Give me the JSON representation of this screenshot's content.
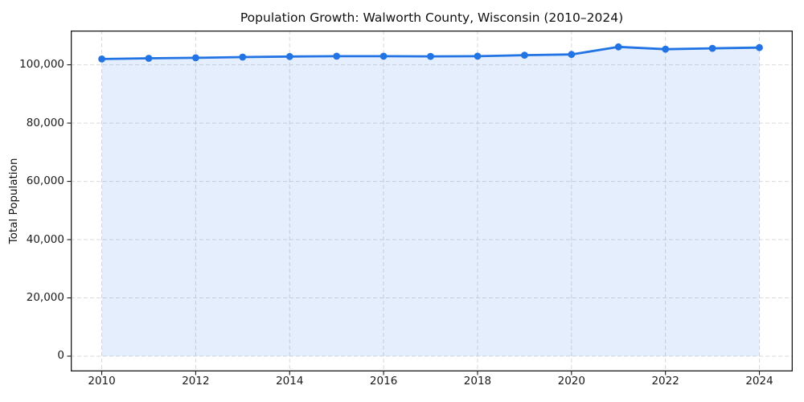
{
  "chart": {
    "title": "Population Growth: Walworth County, Wisconsin (2010–2024)",
    "ylabel": "Total Population"
  },
  "chart_data": {
    "type": "line",
    "title": "Population Growth: Walworth County, Wisconsin (2010–2024)",
    "xlabel": "",
    "ylabel": "Total Population",
    "x": [
      2010,
      2011,
      2012,
      2013,
      2014,
      2015,
      2016,
      2017,
      2018,
      2019,
      2020,
      2021,
      2022,
      2023,
      2024
    ],
    "y": [
      102000,
      102250,
      102400,
      102650,
      102850,
      102950,
      102950,
      102900,
      102950,
      103300,
      103550,
      106150,
      105350,
      105650,
      105900
    ],
    "series_name": "Total Population",
    "line_color": "#2273e3",
    "fill_color": "rgba(34,115,227,0.12)",
    "marker": "circle",
    "grid": true,
    "grid_style": "dashed",
    "legend": "none",
    "xlim": [
      2009.34,
      2024.71
    ],
    "ylim": [
      -5243,
      111757
    ],
    "xticks": [
      2010,
      2012,
      2014,
      2016,
      2018,
      2020,
      2022,
      2024
    ],
    "yticks": [
      0,
      20000,
      40000,
      60000,
      80000,
      100000
    ]
  }
}
